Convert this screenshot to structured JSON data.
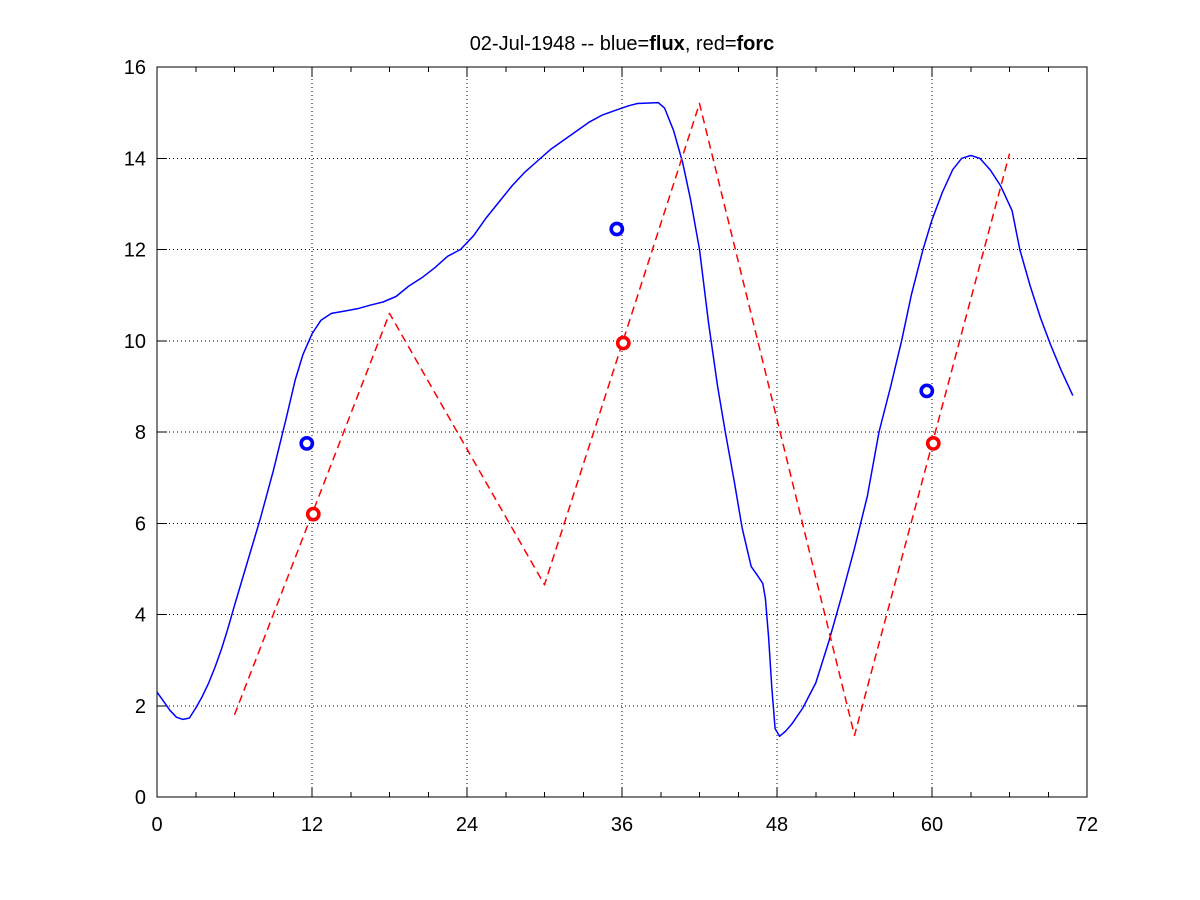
{
  "figure": {
    "background": "#ffffff"
  },
  "title_parts": [
    {
      "text": "02-Jul-1948 -- blue=",
      "bold": false
    },
    {
      "text": "flux",
      "bold": true
    },
    {
      "text": ", red=",
      "bold": false
    },
    {
      "text": "forc",
      "bold": true
    }
  ],
  "chart_data": {
    "type": "line",
    "title": "02-Jul-1948 -- blue=flux, red=forc",
    "xlabel": "",
    "ylabel": "",
    "xlim": [
      0,
      72
    ],
    "ylim": [
      0,
      16
    ],
    "xticks": [
      0,
      12,
      24,
      36,
      48,
      60,
      72
    ],
    "yticks": [
      0,
      2,
      4,
      6,
      8,
      10,
      12,
      14,
      16
    ],
    "x_minor_tick_step": 3,
    "grid": "dotted-major",
    "legend_position": "none",
    "axis_color": "#000000",
    "grid_color": "#000000",
    "series": [
      {
        "name": "flux",
        "type": "line",
        "style": "solid",
        "color": "#0000ff",
        "points": [
          [
            0,
            2.3
          ],
          [
            0.5,
            2.1
          ],
          [
            1,
            1.9
          ],
          [
            1.5,
            1.75
          ],
          [
            2,
            1.7
          ],
          [
            2.5,
            1.73
          ],
          [
            3,
            1.95
          ],
          [
            3.5,
            2.2
          ],
          [
            4,
            2.5
          ],
          [
            4.5,
            2.85
          ],
          [
            5,
            3.25
          ],
          [
            5.5,
            3.7
          ],
          [
            6,
            4.2
          ],
          [
            7,
            5.15
          ],
          [
            8,
            6.1
          ],
          [
            9,
            7.15
          ],
          [
            10,
            8.3
          ],
          [
            10.7,
            9.14
          ],
          [
            11.3,
            9.7
          ],
          [
            12,
            10.15
          ],
          [
            12.7,
            10.45
          ],
          [
            13.5,
            10.6
          ],
          [
            14.5,
            10.65
          ],
          [
            15.5,
            10.7
          ],
          [
            16.5,
            10.78
          ],
          [
            17.5,
            10.85
          ],
          [
            18.5,
            10.97
          ],
          [
            19.5,
            11.2
          ],
          [
            20.5,
            11.38
          ],
          [
            21.5,
            11.6
          ],
          [
            22.5,
            11.85
          ],
          [
            23.5,
            12.0
          ],
          [
            24.5,
            12.3
          ],
          [
            25.5,
            12.7
          ],
          [
            26.5,
            13.05
          ],
          [
            27.5,
            13.4
          ],
          [
            28.5,
            13.7
          ],
          [
            29.5,
            13.95
          ],
          [
            30.5,
            14.2
          ],
          [
            31.5,
            14.4
          ],
          [
            32.5,
            14.6
          ],
          [
            33.5,
            14.8
          ],
          [
            34.5,
            14.95
          ],
          [
            35.5,
            15.05
          ],
          [
            36.5,
            15.15
          ],
          [
            37.2,
            15.2
          ],
          [
            38.8,
            15.22
          ],
          [
            39.3,
            15.1
          ],
          [
            40,
            14.6
          ],
          [
            40.7,
            13.9
          ],
          [
            41.3,
            13.1
          ],
          [
            42,
            12.0
          ],
          [
            42.7,
            10.4
          ],
          [
            43.4,
            9.0
          ],
          [
            44,
            8.0
          ],
          [
            44.7,
            6.9
          ],
          [
            45.3,
            5.9
          ],
          [
            46,
            5.05
          ],
          [
            46.5,
            4.85
          ],
          [
            46.9,
            4.68
          ],
          [
            47.1,
            4.35
          ],
          [
            47.35,
            3.5
          ],
          [
            47.6,
            2.4
          ],
          [
            47.85,
            1.5
          ],
          [
            48.2,
            1.33
          ],
          [
            48.7,
            1.45
          ],
          [
            49.2,
            1.62
          ],
          [
            50,
            1.95
          ],
          [
            51,
            2.5
          ],
          [
            52,
            3.4
          ],
          [
            53,
            4.4
          ],
          [
            54,
            5.45
          ],
          [
            55,
            6.6
          ],
          [
            55.9,
            8.0
          ],
          [
            56.8,
            9.0
          ],
          [
            57.65,
            10.0
          ],
          [
            58.4,
            11.0
          ],
          [
            59.3,
            12.0
          ],
          [
            60,
            12.65
          ],
          [
            60.8,
            13.25
          ],
          [
            61.6,
            13.75
          ],
          [
            62.3,
            14.0
          ],
          [
            63,
            14.06
          ],
          [
            63.7,
            14.0
          ],
          [
            64.5,
            13.75
          ],
          [
            65.3,
            13.4
          ],
          [
            66.2,
            12.85
          ],
          [
            66.8,
            12.0
          ],
          [
            67.6,
            11.2
          ],
          [
            68.4,
            10.5
          ],
          [
            69.2,
            9.9
          ],
          [
            70,
            9.35
          ],
          [
            70.9,
            8.8
          ]
        ]
      },
      {
        "name": "forc",
        "type": "line",
        "style": "dashed",
        "color": "#ff0000",
        "points": [
          [
            6,
            1.8
          ],
          [
            18,
            10.6
          ],
          [
            30,
            4.65
          ],
          [
            42,
            15.2
          ],
          [
            54,
            1.35
          ],
          [
            66,
            14.1
          ]
        ]
      },
      {
        "name": "flux-markers",
        "type": "scatter",
        "marker": "o",
        "color": "#0000ff",
        "points": [
          [
            11.6,
            7.75
          ],
          [
            35.6,
            12.45
          ],
          [
            59.6,
            8.9
          ]
        ]
      },
      {
        "name": "forc-markers",
        "type": "scatter",
        "marker": "o",
        "color": "#ff0000",
        "points": [
          [
            12.1,
            6.2
          ],
          [
            36.1,
            9.95
          ],
          [
            60.1,
            7.75
          ]
        ]
      }
    ]
  }
}
